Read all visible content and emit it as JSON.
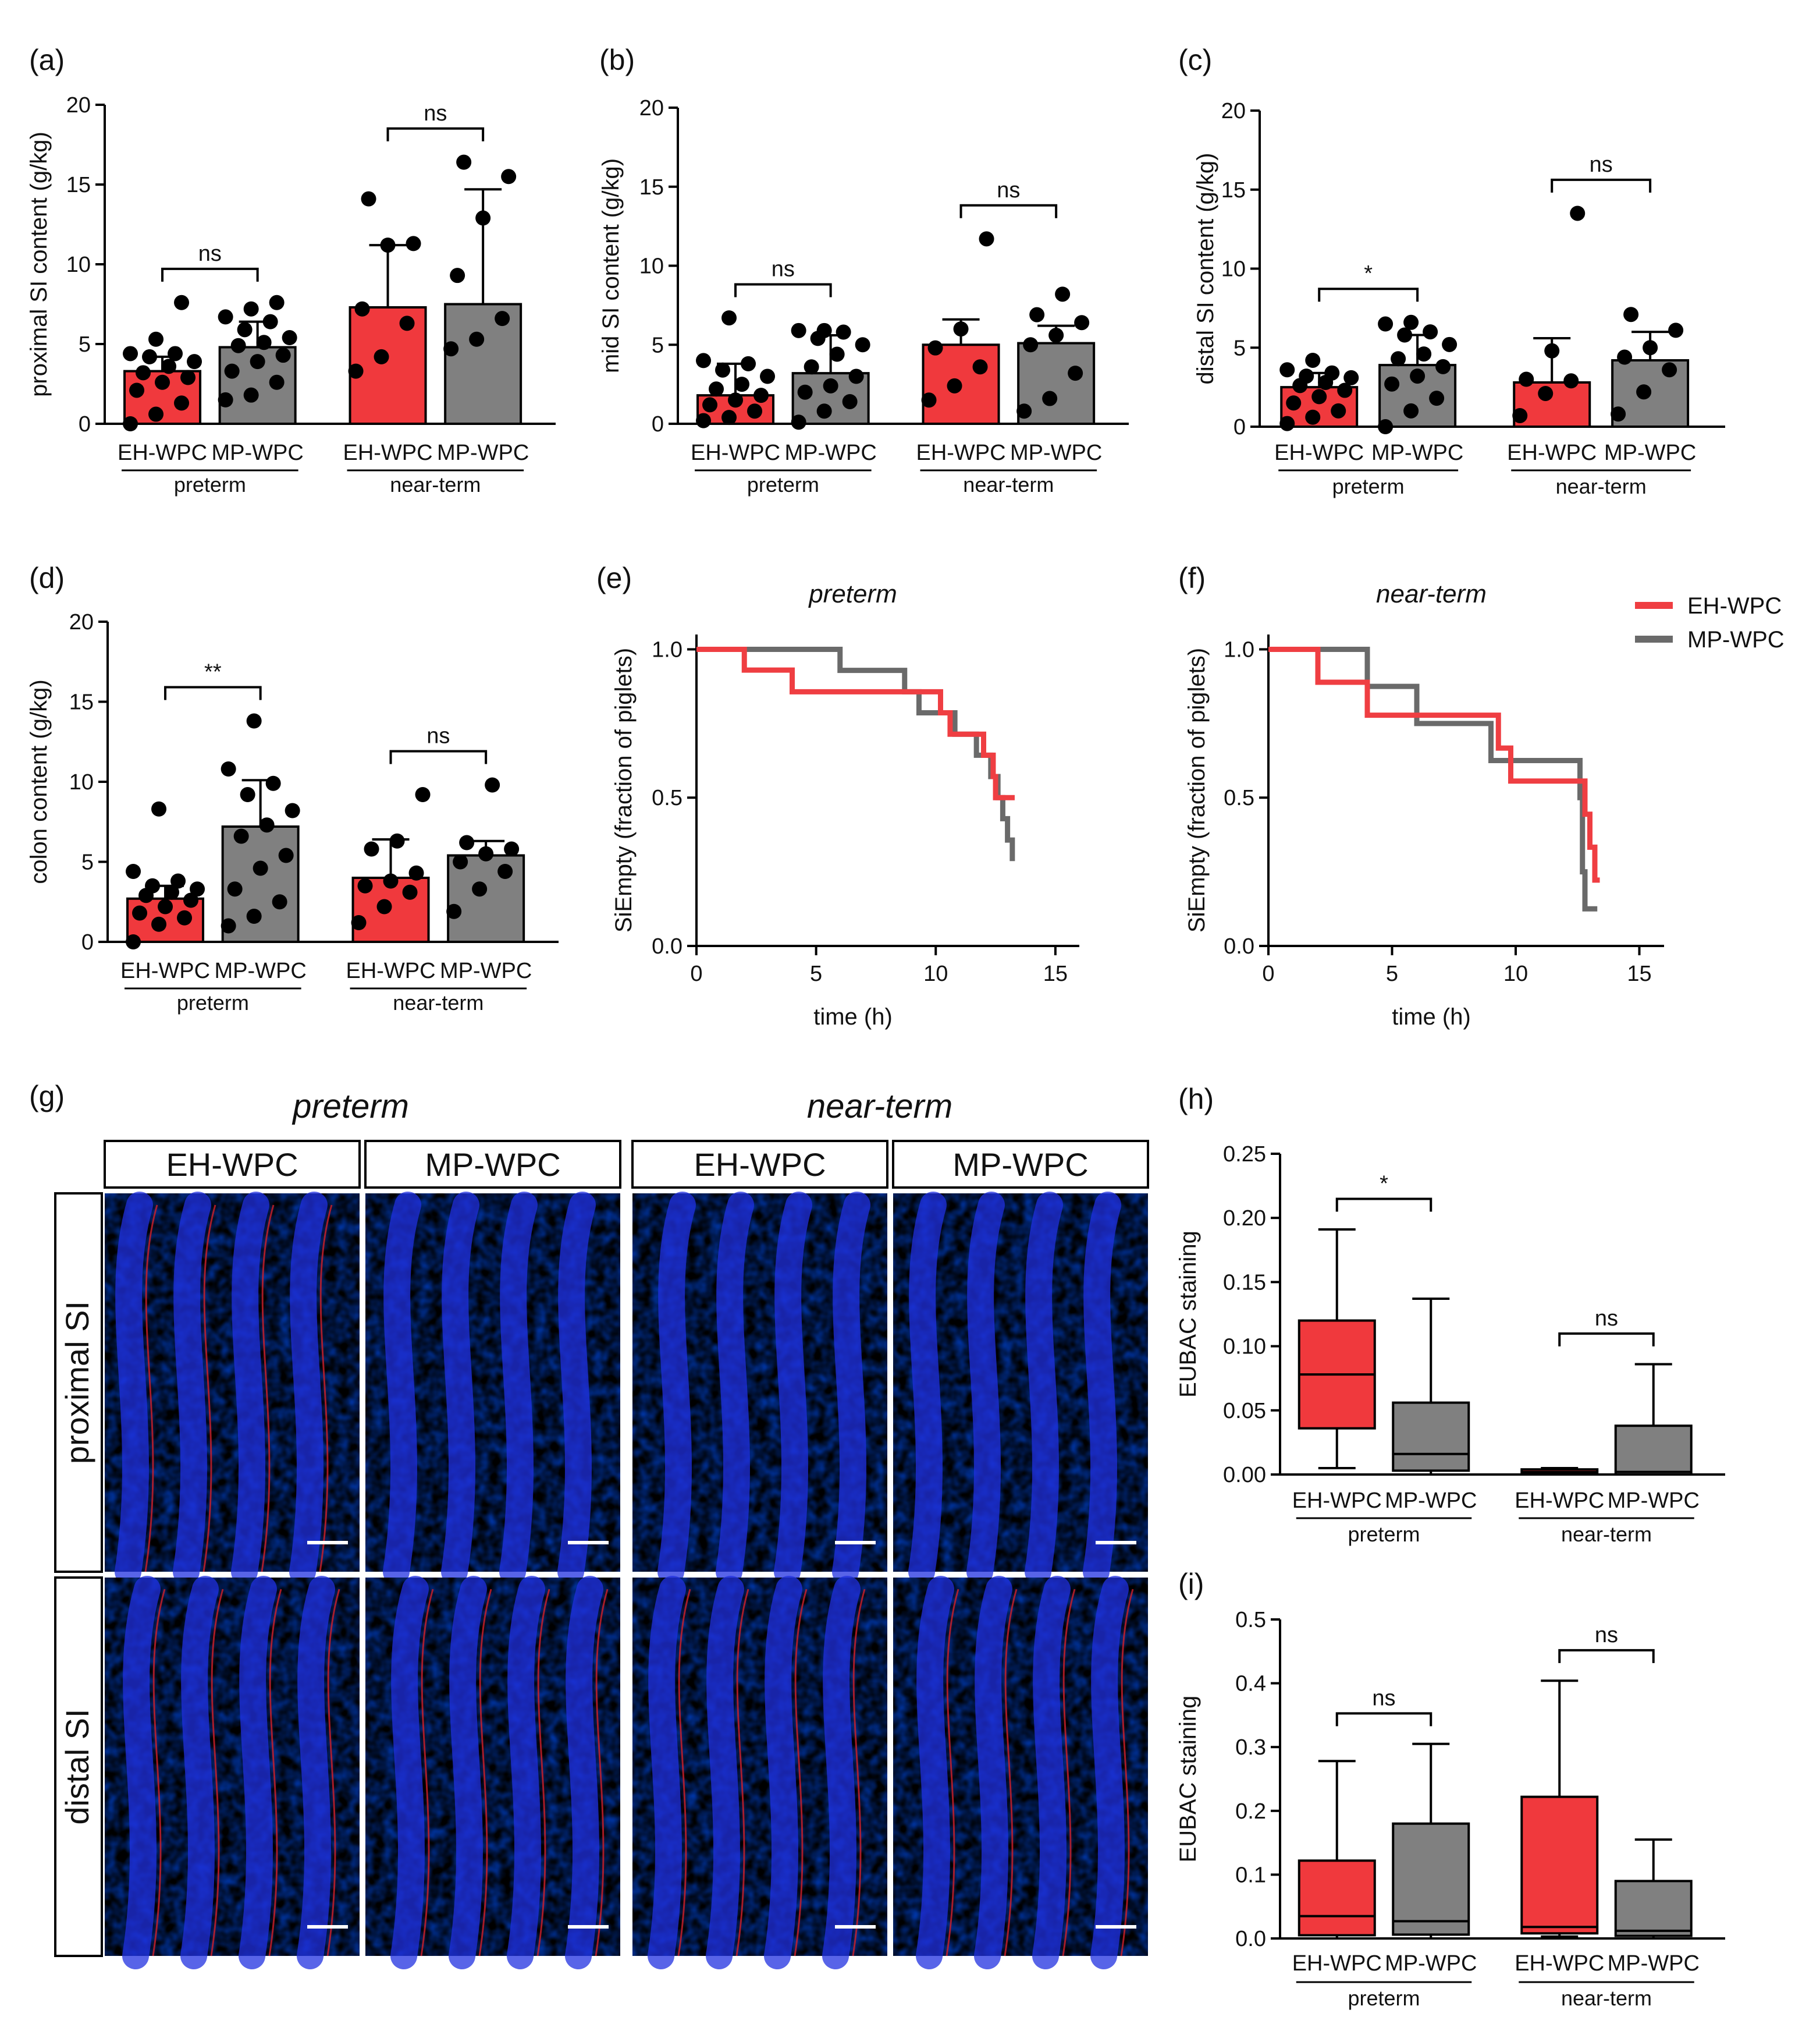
{
  "colors": {
    "eh": "#f0393d",
    "mp": "#808080",
    "line_eh": "#ef3e42",
    "line_mp": "#6a6a6a",
    "scale_bar": "#ffffff",
    "micro_bg": "#000000"
  },
  "categories": [
    "EH-WPC",
    "MP-WPC",
    "EH-WPC",
    "MP-WPC"
  ],
  "groups": [
    "preterm",
    "near-term"
  ],
  "chart_data": [
    {
      "id": "a",
      "panel_label": "(a)",
      "type": "bar",
      "ylabel": "proximal SI content (g/kg)",
      "ylim": [
        0,
        20
      ],
      "yticks": [
        0,
        5,
        10,
        15,
        20
      ],
      "series": [
        {
          "name": "preterm EH-WPC",
          "mean": 3.3,
          "err": 0.9,
          "points": [
            0.0,
            0.6,
            1.3,
            2.1,
            2.6,
            2.9,
            3.2,
            3.6,
            3.9,
            4.2,
            4.4,
            4.4,
            5.3,
            7.6
          ]
        },
        {
          "name": "preterm MP-WPC",
          "mean": 4.8,
          "err": 1.6,
          "points": [
            1.5,
            1.8,
            2.6,
            3.3,
            3.9,
            4.3,
            4.9,
            5.1,
            5.4,
            5.9,
            6.4,
            6.7,
            7.2,
            7.6
          ]
        },
        {
          "name": "near-term EH-WPC",
          "mean": 7.3,
          "err": 3.9,
          "points": [
            3.3,
            4.2,
            6.3,
            7.2,
            11.2,
            11.3,
            14.1
          ]
        },
        {
          "name": "near-term MP-WPC",
          "mean": 7.5,
          "err": 7.2,
          "points": [
            4.7,
            5.3,
            6.6,
            9.3,
            12.9,
            15.5,
            16.4
          ]
        }
      ],
      "significance": [
        {
          "pair": [
            0,
            1
          ],
          "label": "ns"
        },
        {
          "pair": [
            2,
            3
          ],
          "label": "ns"
        }
      ]
    },
    {
      "id": "b",
      "panel_label": "(b)",
      "type": "bar",
      "ylabel": "mid SI content (g/kg)",
      "ylim": [
        0,
        20
      ],
      "yticks": [
        0,
        5,
        10,
        15,
        20
      ],
      "series": [
        {
          "name": "preterm EH-WPC",
          "mean": 1.8,
          "err": 2.0,
          "points": [
            0.2,
            0.4,
            0.8,
            1.2,
            1.5,
            1.8,
            2.2,
            2.5,
            3.0,
            3.4,
            3.8,
            4.0,
            6.7
          ]
        },
        {
          "name": "preterm MP-WPC",
          "mean": 3.2,
          "err": 2.4,
          "points": [
            0.1,
            0.8,
            1.4,
            2.0,
            2.4,
            3.0,
            3.6,
            4.4,
            5.0,
            5.4,
            5.8,
            5.9,
            5.9
          ]
        },
        {
          "name": "near-term EH-WPC",
          "mean": 5.0,
          "err": 1.6,
          "points": [
            1.5,
            2.4,
            3.6,
            4.8,
            6.0,
            11.7
          ]
        },
        {
          "name": "near-term MP-WPC",
          "mean": 5.1,
          "err": 1.1,
          "points": [
            0.8,
            1.6,
            3.2,
            5.0,
            5.6,
            6.4,
            6.9,
            8.2
          ]
        }
      ],
      "significance": [
        {
          "pair": [
            0,
            1
          ],
          "label": "ns"
        },
        {
          "pair": [
            2,
            3
          ],
          "label": "ns"
        }
      ]
    },
    {
      "id": "c",
      "panel_label": "(c)",
      "type": "bar",
      "ylabel": "distal SI content (g/kg)",
      "ylim": [
        0,
        20
      ],
      "yticks": [
        0,
        5,
        10,
        15,
        20
      ],
      "series": [
        {
          "name": "preterm EH-WPC",
          "mean": 2.5,
          "err": 0.9,
          "points": [
            0.2,
            0.6,
            1.0,
            1.5,
            1.9,
            2.3,
            2.6,
            2.8,
            3.1,
            3.2,
            3.4,
            3.6,
            4.2
          ]
        },
        {
          "name": "preterm MP-WPC",
          "mean": 3.9,
          "err": 1.9,
          "points": [
            0.0,
            1.0,
            1.8,
            2.7,
            3.2,
            3.8,
            4.3,
            4.6,
            5.2,
            5.8,
            6.0,
            6.5,
            6.6
          ]
        },
        {
          "name": "near-term EH-WPC",
          "mean": 2.8,
          "err": 2.8,
          "points": [
            0.7,
            2.1,
            2.9,
            3.0,
            4.8,
            13.5
          ]
        },
        {
          "name": "near-term MP-WPC",
          "mean": 4.2,
          "err": 1.8,
          "points": [
            0.8,
            2.2,
            3.6,
            4.4,
            5.0,
            6.1,
            7.1
          ]
        }
      ],
      "significance": [
        {
          "pair": [
            0,
            1
          ],
          "label": "*"
        },
        {
          "pair": [
            2,
            3
          ],
          "label": "ns"
        }
      ]
    },
    {
      "id": "d",
      "panel_label": "(d)",
      "type": "bar",
      "ylabel": "colon content (g/kg)",
      "ylim": [
        0,
        20
      ],
      "yticks": [
        0,
        5,
        10,
        15,
        20
      ],
      "series": [
        {
          "name": "preterm EH-WPC",
          "mean": 2.7,
          "err": 0.8,
          "points": [
            0.0,
            1.1,
            1.5,
            1.8,
            2.2,
            2.6,
            2.9,
            3.1,
            3.3,
            3.5,
            3.8,
            4.4,
            8.3
          ]
        },
        {
          "name": "preterm MP-WPC",
          "mean": 7.2,
          "err": 2.9,
          "points": [
            1.0,
            1.6,
            2.5,
            3.3,
            4.6,
            5.4,
            6.6,
            7.3,
            8.2,
            9.2,
            9.9,
            10.8,
            13.8
          ]
        },
        {
          "name": "near-term EH-WPC",
          "mean": 4.0,
          "err": 2.4,
          "points": [
            1.2,
            2.2,
            3.1,
            3.5,
            3.8,
            4.3,
            5.8,
            6.3,
            9.2
          ]
        },
        {
          "name": "near-term MP-WPC",
          "mean": 5.4,
          "err": 0.9,
          "points": [
            1.9,
            3.3,
            4.4,
            5.0,
            5.5,
            5.8,
            6.2,
            9.8
          ]
        }
      ],
      "significance": [
        {
          "pair": [
            0,
            1
          ],
          "label": "**"
        },
        {
          "pair": [
            2,
            3
          ],
          "label": "ns"
        }
      ]
    },
    {
      "id": "e",
      "panel_label": "(e)",
      "type": "line",
      "title": "preterm",
      "xlabel": "time (h)",
      "ylabel": "SiEmpty (fraction of piglets)",
      "xlim": [
        0,
        16
      ],
      "ylim": [
        0,
        1.05
      ],
      "xticks": [
        0,
        5,
        10,
        15
      ],
      "yticks": [
        0.0,
        0.5,
        1.0
      ],
      "series": [
        {
          "name": "EH-WPC",
          "steps": [
            [
              0,
              1.0
            ],
            [
              2.0,
              0.93
            ],
            [
              4.0,
              0.857
            ],
            [
              9.5,
              0.857
            ],
            [
              10.2,
              0.786
            ],
            [
              10.6,
              0.714
            ],
            [
              12.0,
              0.643
            ],
            [
              12.4,
              0.571
            ],
            [
              12.5,
              0.5
            ],
            [
              13.3,
              0.5
            ]
          ]
        },
        {
          "name": "MP-WPC",
          "steps": [
            [
              0,
              1.0
            ],
            [
              6.0,
              1.0
            ],
            [
              6.0,
              0.929
            ],
            [
              8.7,
              0.929
            ],
            [
              8.7,
              0.857
            ],
            [
              9.3,
              0.786
            ],
            [
              10.8,
              0.714
            ],
            [
              11.7,
              0.643
            ],
            [
              12.3,
              0.571
            ],
            [
              12.6,
              0.5
            ],
            [
              12.8,
              0.429
            ],
            [
              13.0,
              0.357
            ],
            [
              13.2,
              0.286
            ],
            [
              13.2,
              0.286
            ]
          ]
        }
      ]
    },
    {
      "id": "f",
      "panel_label": "(f)",
      "type": "line",
      "title": "near-term",
      "xlabel": "time (h)",
      "ylabel": "SiEmpty (fraction of piglets)",
      "xlim": [
        0,
        16
      ],
      "ylim": [
        0,
        1.05
      ],
      "xticks": [
        0,
        5,
        10,
        15
      ],
      "yticks": [
        0.0,
        0.5,
        1.0
      ],
      "series": [
        {
          "name": "EH-WPC",
          "steps": [
            [
              0,
              1.0
            ],
            [
              2.0,
              0.889
            ],
            [
              4.0,
              0.778
            ],
            [
              9.0,
              0.778
            ],
            [
              9.3,
              0.667
            ],
            [
              9.8,
              0.556
            ],
            [
              12.6,
              0.556
            ],
            [
              12.8,
              0.444
            ],
            [
              13.0,
              0.333
            ],
            [
              13.2,
              0.222
            ],
            [
              13.4,
              0.222
            ]
          ]
        },
        {
          "name": "MP-WPC",
          "steps": [
            [
              0,
              1.0
            ],
            [
              4.0,
              1.0
            ],
            [
              4.0,
              0.875
            ],
            [
              6.0,
              0.875
            ],
            [
              6.0,
              0.75
            ],
            [
              9.0,
              0.75
            ],
            [
              9.0,
              0.625
            ],
            [
              12.5,
              0.625
            ],
            [
              12.6,
              0.5
            ],
            [
              12.7,
              0.25
            ],
            [
              12.8,
              0.125
            ],
            [
              13.3,
              0.125
            ]
          ]
        }
      ]
    },
    {
      "id": "h",
      "panel_label": "(h)",
      "type": "box",
      "ylabel": "EUBAC staining",
      "ylim": [
        0,
        0.25
      ],
      "yticks": [
        "0.00",
        "0.05",
        "0.10",
        "0.15",
        "0.20",
        "0.25"
      ],
      "series": [
        {
          "name": "preterm EH-WPC",
          "min": 0.005,
          "q1": 0.036,
          "median": 0.078,
          "q3": 0.12,
          "max": 0.191
        },
        {
          "name": "preterm MP-WPC",
          "min": 0.0,
          "q1": 0.003,
          "median": 0.016,
          "q3": 0.056,
          "max": 0.137
        },
        {
          "name": "near-term EH-WPC",
          "min": 0.0,
          "q1": 0.001,
          "median": 0.002,
          "q3": 0.004,
          "max": 0.005
        },
        {
          "name": "near-term MP-WPC",
          "min": 0.0,
          "q1": 0.0,
          "median": 0.002,
          "q3": 0.038,
          "max": 0.086
        }
      ],
      "significance": [
        {
          "pair": [
            0,
            1
          ],
          "label": "*"
        },
        {
          "pair": [
            2,
            3
          ],
          "label": "ns"
        }
      ]
    },
    {
      "id": "i",
      "panel_label": "(i)",
      "type": "box",
      "ylabel": "EUBAC staining",
      "ylim": [
        0,
        0.5
      ],
      "yticks": [
        "0.0",
        "0.1",
        "0.2",
        "0.3",
        "0.4",
        "0.5"
      ],
      "series": [
        {
          "name": "preterm EH-WPC",
          "min": 0.0,
          "q1": 0.005,
          "median": 0.035,
          "q3": 0.122,
          "max": 0.278
        },
        {
          "name": "preterm MP-WPC",
          "min": 0.0,
          "q1": 0.006,
          "median": 0.027,
          "q3": 0.18,
          "max": 0.305
        },
        {
          "name": "near-term EH-WPC",
          "min": 0.003,
          "q1": 0.008,
          "median": 0.018,
          "q3": 0.222,
          "max": 0.404
        },
        {
          "name": "near-term MP-WPC",
          "min": 0.0,
          "q1": 0.004,
          "median": 0.012,
          "q3": 0.09,
          "max": 0.155
        }
      ],
      "significance": [
        {
          "pair": [
            0,
            1
          ],
          "label": "ns"
        },
        {
          "pair": [
            2,
            3
          ],
          "label": "ns"
        }
      ]
    }
  ],
  "legend": [
    "EH-WPC",
    "MP-WPC"
  ],
  "micrographs": {
    "panel_label": "(g)",
    "group_titles": [
      "preterm",
      "near-term"
    ],
    "columns": [
      "EH-WPC",
      "MP-WPC",
      "EH-WPC",
      "MP-WPC"
    ],
    "rows": [
      "proximal SI",
      "distal SI"
    ]
  }
}
